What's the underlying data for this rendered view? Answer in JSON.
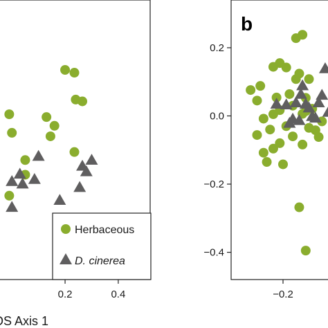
{
  "colors": {
    "herbaceous": "#8aad2e",
    "d_cinerea": "#5f5e5f",
    "axis": "#222222"
  },
  "legend": {
    "items": [
      {
        "label": "Herbaceous",
        "marker": "circle"
      },
      {
        "label": "D. cinerea",
        "marker": "triangle",
        "italic": true
      }
    ]
  },
  "chart_data": [
    {
      "type": "scatter",
      "panel_label": "",
      "xlabel": "DS Axis 1",
      "ylabel": "",
      "xlim": [
        -0.05,
        0.52
      ],
      "ylim": [
        -0.3,
        0.5
      ],
      "x_ticks": [
        {
          "value": 0.2,
          "label": "0.2"
        },
        {
          "value": 0.4,
          "label": "0.4"
        }
      ],
      "series": [
        {
          "name": "Herbaceous",
          "marker": "circle",
          "points": [
            [
              -0.01,
              0.173
            ],
            [
              0.0,
              0.12
            ],
            [
              0.13,
              0.165
            ],
            [
              0.16,
              0.14
            ],
            [
              0.145,
              0.11
            ],
            [
              0.2,
              0.3
            ],
            [
              0.235,
              0.292
            ],
            [
              0.24,
              0.215
            ],
            [
              0.265,
              0.21
            ],
            [
              0.235,
              0.065
            ],
            [
              0.05,
              0.042
            ],
            [
              0.05,
              0.0
            ],
            [
              -0.01,
              -0.06
            ]
          ]
        },
        {
          "name": "D. cinerea",
          "marker": "triangle",
          "points": [
            [
              0.1,
              0.054
            ],
            [
              0.3,
              0.043
            ],
            [
              0.265,
              0.026
            ],
            [
              0.28,
              0.01
            ],
            [
              0.03,
              0.003
            ],
            [
              0.085,
              -0.012
            ],
            [
              0.0,
              -0.018
            ],
            [
              0.04,
              -0.025
            ],
            [
              0.255,
              -0.035
            ],
            [
              0.18,
              -0.072
            ],
            [
              0.0,
              -0.092
            ]
          ]
        }
      ]
    },
    {
      "type": "scatter",
      "panel_label": "b",
      "xlabel": "",
      "ylabel": "",
      "xlim": [
        -0.36,
        -0.04
      ],
      "ylim": [
        -0.48,
        0.34
      ],
      "x_ticks": [
        {
          "value": -0.2,
          "label": "−0.2"
        }
      ],
      "y_ticks": [
        {
          "value": 0.2,
          "label": "0.2"
        },
        {
          "value": 0.0,
          "label": "0.0"
        },
        {
          "value": -0.2,
          "label": "−0.2"
        },
        {
          "value": -0.4,
          "label": "−0.4"
        }
      ],
      "series": [
        {
          "name": "Herbaceous",
          "marker": "circle",
          "points": [
            [
              -0.3,
              0.076
            ],
            [
              -0.27,
              0.088
            ],
            [
              -0.28,
              0.045
            ],
            [
              -0.22,
              0.054
            ],
            [
              -0.23,
              0.005
            ],
            [
              -0.21,
              0.017
            ],
            [
              -0.26,
              -0.008
            ],
            [
              -0.28,
              -0.056
            ],
            [
              -0.24,
              -0.04
            ],
            [
              -0.26,
              -0.108
            ],
            [
              -0.25,
              -0.135
            ],
            [
              -0.23,
              -0.096
            ],
            [
              -0.21,
              -0.08
            ],
            [
              -0.2,
              -0.142
            ],
            [
              -0.19,
              -0.03
            ],
            [
              -0.18,
              0.064
            ],
            [
              -0.16,
              0.108
            ],
            [
              -0.15,
              0.124
            ],
            [
              -0.12,
              0.108
            ],
            [
              -0.13,
              0.053
            ],
            [
              -0.14,
              0.006
            ],
            [
              -0.12,
              -0.035
            ],
            [
              -0.17,
              -0.06
            ],
            [
              -0.1,
              -0.042
            ],
            [
              -0.16,
              0.228
            ],
            [
              -0.14,
              0.238
            ],
            [
              -0.21,
              0.155
            ],
            [
              -0.19,
              0.142
            ],
            [
              -0.23,
              0.144
            ],
            [
              -0.13,
              0.014
            ],
            [
              -0.17,
              0.03
            ],
            [
              -0.11,
              0.021
            ],
            [
              -0.14,
              -0.084
            ],
            [
              -0.09,
              -0.062
            ],
            [
              -0.08,
              -0.016
            ],
            [
              -0.15,
              -0.268
            ],
            [
              -0.13,
              -0.395
            ]
          ]
        },
        {
          "name": "D. cinerea",
          "marker": "triangle",
          "points": [
            [
              -0.22,
              0.036
            ],
            [
              -0.19,
              0.034
            ],
            [
              -0.16,
              0.04
            ],
            [
              -0.145,
              0.065
            ],
            [
              -0.14,
              0.09
            ],
            [
              -0.13,
              0.036
            ],
            [
              -0.12,
              0.025
            ],
            [
              -0.11,
              0.0
            ],
            [
              -0.17,
              -0.008
            ],
            [
              -0.15,
              -0.012
            ],
            [
              -0.18,
              -0.02
            ],
            [
              -0.09,
              0.04
            ],
            [
              -0.08,
              0.062
            ],
            [
              -0.07,
              0.14
            ],
            [
              -0.1,
              -0.005
            ],
            [
              -0.06,
              0.012
            ]
          ]
        }
      ]
    }
  ]
}
